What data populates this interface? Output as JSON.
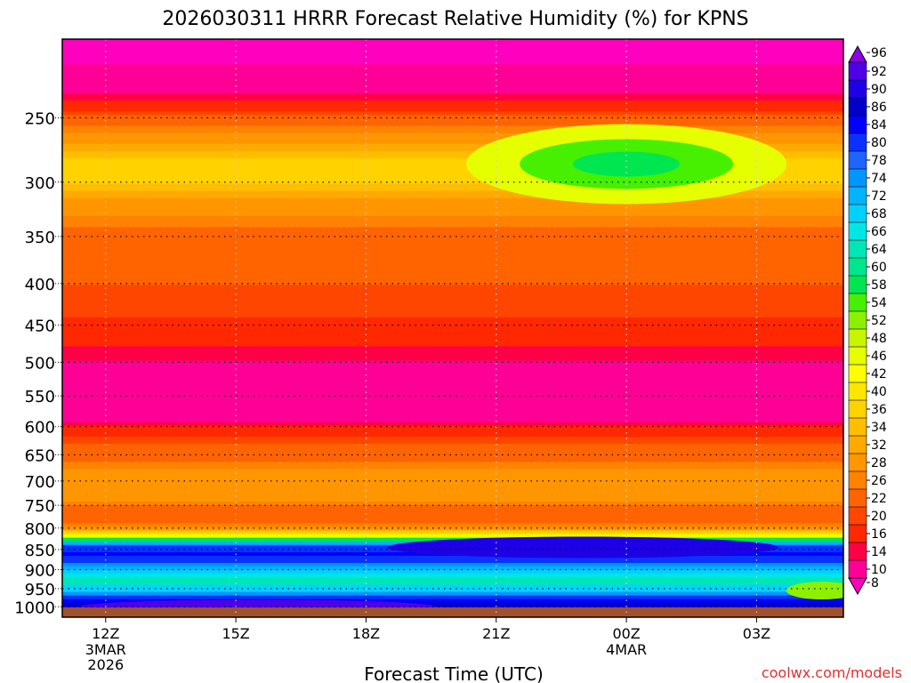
{
  "chart_data": {
    "type": "heatmap",
    "title": "2026030311 HRRR Forecast Relative Humidity (%) for KPNS",
    "xlabel": "Forecast Time (UTC)",
    "ylabel": "",
    "x_ticks": [
      {
        "hour": 0,
        "label": "12Z",
        "sub": [
          "3MAR",
          "2026"
        ]
      },
      {
        "hour": 3,
        "label": "15Z",
        "sub": []
      },
      {
        "hour": 6,
        "label": "18Z",
        "sub": []
      },
      {
        "hour": 9,
        "label": "21Z",
        "sub": []
      },
      {
        "hour": 12,
        "label": "00Z",
        "sub": [
          "4MAR"
        ]
      },
      {
        "hour": 15,
        "label": "03Z",
        "sub": []
      }
    ],
    "x_range_hours": [
      -1,
      17
    ],
    "y_scale": "log-pressure",
    "y_range_hPa": [
      1030,
      200
    ],
    "y_ticks": [
      250,
      300,
      350,
      400,
      450,
      500,
      550,
      600,
      650,
      700,
      750,
      800,
      850,
      900,
      950,
      1000
    ],
    "legend": {
      "position": "right",
      "labels": [
        "96",
        "92",
        "90",
        "86",
        "84",
        "80",
        "78",
        "74",
        "72",
        "68",
        "66",
        "64",
        "60",
        "58",
        "54",
        "52",
        "48",
        "46",
        "42",
        "40",
        "36",
        "34",
        "32",
        "28",
        "26",
        "22",
        "20",
        "16",
        "14",
        "10",
        "8"
      ],
      "colors": [
        "#8c00e6",
        "#5000e6",
        "#1e00e6",
        "#0000c8",
        "#0000ff",
        "#0a32ff",
        "#1e64ff",
        "#0096ff",
        "#00b4ff",
        "#00d2ff",
        "#00e6e6",
        "#00e6b4",
        "#00e68c",
        "#00e650",
        "#46f000",
        "#8cf000",
        "#c8f500",
        "#e6ff00",
        "#ffff00",
        "#ffe600",
        "#ffd200",
        "#ffbe00",
        "#ffaa00",
        "#ff9600",
        "#ff8200",
        "#ff6400",
        "#ff4600",
        "#ff2800",
        "#ff0046",
        "#ff0096",
        "#ff00be"
      ]
    },
    "rh_profile": [
      {
        "p": 200,
        "rh": 8
      },
      {
        "p": 230,
        "rh": 12
      },
      {
        "p": 245,
        "rh": 20
      },
      {
        "p": 260,
        "rh": 28
      },
      {
        "p": 280,
        "rh": 36
      },
      {
        "p": 300,
        "rh": 36
      },
      {
        "p": 320,
        "rh": 30
      },
      {
        "p": 340,
        "rh": 26
      },
      {
        "p": 370,
        "rh": 22
      },
      {
        "p": 400,
        "rh": 22
      },
      {
        "p": 440,
        "rh": 20
      },
      {
        "p": 480,
        "rh": 16
      },
      {
        "p": 520,
        "rh": 12
      },
      {
        "p": 560,
        "rh": 10
      },
      {
        "p": 590,
        "rh": 14
      },
      {
        "p": 620,
        "rh": 20
      },
      {
        "p": 660,
        "rh": 26
      },
      {
        "p": 700,
        "rh": 30
      },
      {
        "p": 740,
        "rh": 28
      },
      {
        "p": 780,
        "rh": 22
      },
      {
        "p": 800,
        "rh": 30
      },
      {
        "p": 820,
        "rh": 50
      },
      {
        "p": 840,
        "rh": 80
      },
      {
        "p": 860,
        "rh": 86
      },
      {
        "p": 880,
        "rh": 80
      },
      {
        "p": 900,
        "rh": 72
      },
      {
        "p": 930,
        "rh": 64
      },
      {
        "p": 955,
        "rh": 72
      },
      {
        "p": 980,
        "rh": 84
      },
      {
        "p": 1000,
        "rh": 90
      },
      {
        "p": 1012,
        "rh": 92
      }
    ],
    "upper_moist_pocket": {
      "center_hour": 12,
      "center_p": 285,
      "peak_rh": 58
    },
    "ground_color": "#a0522d"
  },
  "credit": "coolwx.com/models"
}
